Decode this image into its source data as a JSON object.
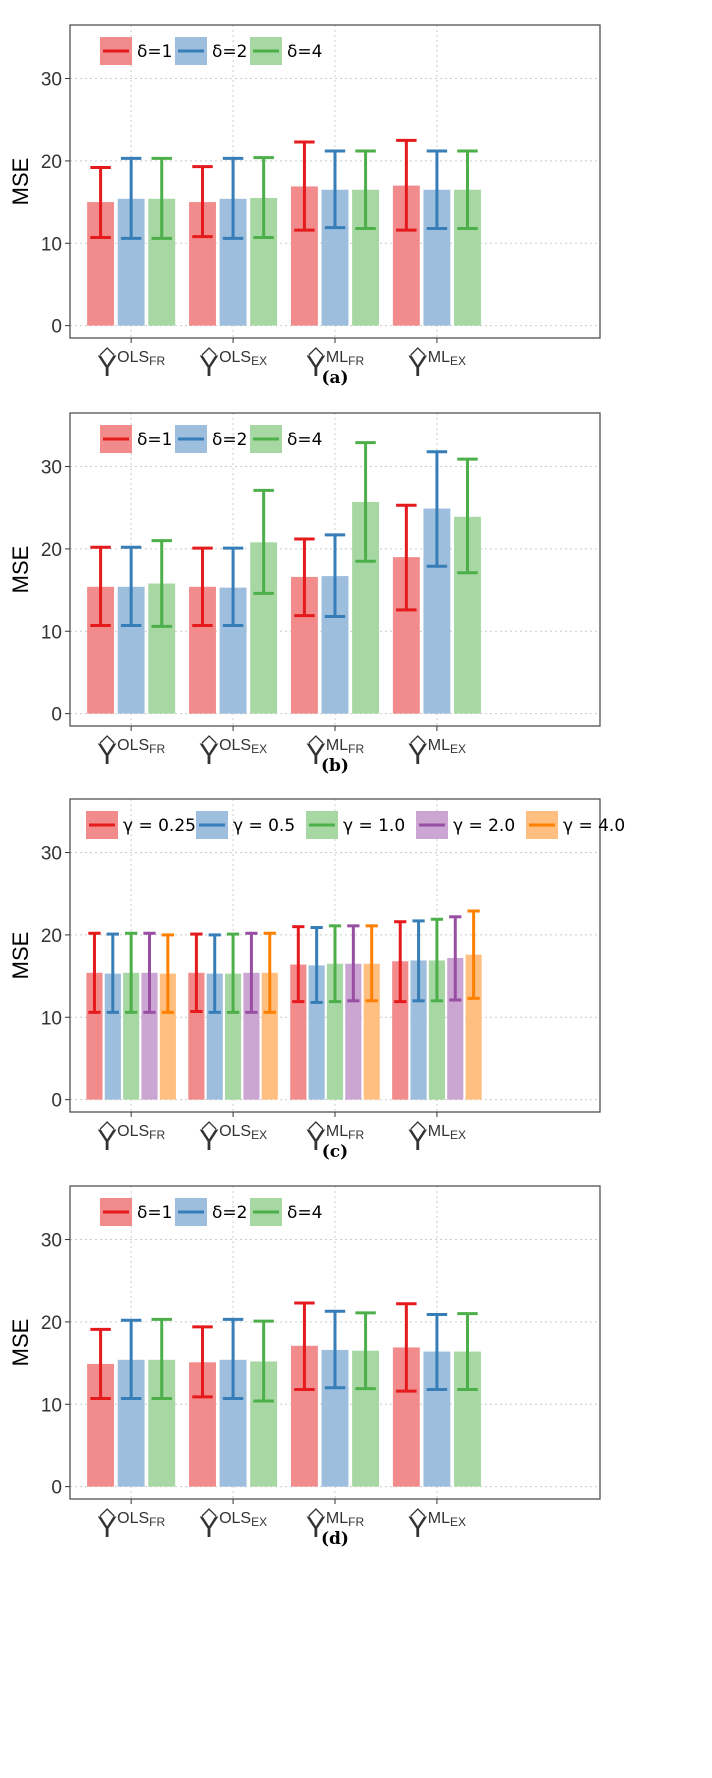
{
  "colors": {
    "line": [
      "#E41A1C",
      "#377EB8",
      "#4DAF4A",
      "#984EA3",
      "#FF7F00"
    ],
    "fill": [
      "#F28B8C",
      "#9DBEDC",
      "#A7D8A4",
      "#CBA6D3",
      "#FFBF80"
    ]
  },
  "chart_data": [
    {
      "type": "bar",
      "caption": "(a)",
      "ylabel": "MSE",
      "ylim": [
        -1.5,
        36.5
      ],
      "yticks": [
        "0",
        "10",
        "20",
        "30"
      ],
      "grid": true,
      "legend_position": "top-left",
      "categories": [
        {
          "base": "Y",
          "sup": "OLS",
          "sub": "FR"
        },
        {
          "base": "Y",
          "sup": "OLS",
          "sub": "EX"
        },
        {
          "base": "Y",
          "sup": "ML",
          "sub": "FR"
        },
        {
          "base": "Y",
          "sup": "ML",
          "sub": "EX"
        }
      ],
      "series": [
        {
          "name": "δ=1",
          "values": [
            15.0,
            15.0,
            16.9,
            17.0
          ],
          "lower": [
            10.7,
            10.8,
            11.6,
            11.6
          ],
          "upper": [
            19.2,
            19.3,
            22.3,
            22.5
          ]
        },
        {
          "name": "δ=2",
          "values": [
            15.4,
            15.4,
            16.5,
            16.5
          ],
          "lower": [
            10.6,
            10.6,
            11.9,
            11.8
          ],
          "upper": [
            20.3,
            20.3,
            21.2,
            21.2
          ]
        },
        {
          "name": "δ=4",
          "values": [
            15.4,
            15.5,
            16.5,
            16.5
          ],
          "lower": [
            10.6,
            10.7,
            11.8,
            11.8
          ],
          "upper": [
            20.3,
            20.4,
            21.2,
            21.2
          ]
        }
      ]
    },
    {
      "type": "bar",
      "caption": "(b)",
      "ylabel": "MSE",
      "ylim": [
        -1.5,
        36.5
      ],
      "yticks": [
        "0",
        "10",
        "20",
        "30"
      ],
      "grid": true,
      "legend_position": "top-left",
      "categories": [
        {
          "base": "Y",
          "sup": "OLS",
          "sub": "FR"
        },
        {
          "base": "Y",
          "sup": "OLS",
          "sub": "EX"
        },
        {
          "base": "Y",
          "sup": "ML",
          "sub": "FR"
        },
        {
          "base": "Y",
          "sup": "ML",
          "sub": "EX"
        }
      ],
      "series": [
        {
          "name": "δ=1",
          "values": [
            15.4,
            15.4,
            16.6,
            19.0
          ],
          "lower": [
            10.7,
            10.7,
            11.9,
            12.6
          ],
          "upper": [
            20.2,
            20.1,
            21.2,
            25.3
          ]
        },
        {
          "name": "δ=2",
          "values": [
            15.4,
            15.3,
            16.7,
            24.9
          ],
          "lower": [
            10.7,
            10.7,
            11.8,
            17.9
          ],
          "upper": [
            20.2,
            20.1,
            21.7,
            31.8
          ]
        },
        {
          "name": "δ=4",
          "values": [
            15.8,
            20.8,
            25.7,
            23.9
          ],
          "lower": [
            10.6,
            14.6,
            18.5,
            17.1
          ],
          "upper": [
            21.0,
            27.1,
            32.9,
            30.9
          ]
        }
      ]
    },
    {
      "type": "bar",
      "caption": "(c)",
      "ylabel": "MSE",
      "ylim": [
        -1.5,
        36.5
      ],
      "yticks": [
        "0",
        "10",
        "20",
        "30"
      ],
      "grid": true,
      "legend_position": "top",
      "categories": [
        {
          "base": "Y",
          "sup": "OLS",
          "sub": "FR"
        },
        {
          "base": "Y",
          "sup": "OLS",
          "sub": "EX"
        },
        {
          "base": "Y",
          "sup": "ML",
          "sub": "FR"
        },
        {
          "base": "Y",
          "sup": "ML",
          "sub": "EX"
        }
      ],
      "series": [
        {
          "name": "γ = 0.25",
          "values": [
            15.4,
            15.4,
            16.4,
            16.8
          ],
          "lower": [
            10.6,
            10.7,
            11.9,
            11.9
          ],
          "upper": [
            20.2,
            20.1,
            21.0,
            21.6
          ]
        },
        {
          "name": "γ = 0.5",
          "values": [
            15.3,
            15.3,
            16.3,
            16.9
          ],
          "lower": [
            10.6,
            10.6,
            11.8,
            12.0
          ],
          "upper": [
            20.1,
            20.0,
            20.9,
            21.7
          ]
        },
        {
          "name": "γ = 1.0",
          "values": [
            15.4,
            15.3,
            16.5,
            16.9
          ],
          "lower": [
            10.6,
            10.6,
            11.9,
            12.0
          ],
          "upper": [
            20.2,
            20.1,
            21.1,
            21.9
          ]
        },
        {
          "name": "γ = 2.0",
          "values": [
            15.4,
            15.4,
            16.5,
            17.2
          ],
          "lower": [
            10.6,
            10.6,
            12.0,
            12.1
          ],
          "upper": [
            20.2,
            20.2,
            21.1,
            22.2
          ]
        },
        {
          "name": "γ = 4.0",
          "values": [
            15.3,
            15.4,
            16.5,
            17.6
          ],
          "lower": [
            10.6,
            10.6,
            12.0,
            12.3
          ],
          "upper": [
            20.0,
            20.2,
            21.1,
            22.9
          ]
        }
      ]
    },
    {
      "type": "bar",
      "caption": "(d)",
      "ylabel": "MSE",
      "ylim": [
        -1.5,
        36.5
      ],
      "yticks": [
        "0",
        "10",
        "20",
        "30"
      ],
      "grid": true,
      "legend_position": "top-left",
      "categories": [
        {
          "base": "Y",
          "sup": "OLS",
          "sub": "FR"
        },
        {
          "base": "Y",
          "sup": "OLS",
          "sub": "EX"
        },
        {
          "base": "Y",
          "sup": "ML",
          "sub": "FR"
        },
        {
          "base": "Y",
          "sup": "ML",
          "sub": "EX"
        }
      ],
      "series": [
        {
          "name": "δ=1",
          "values": [
            14.9,
            15.1,
            17.1,
            16.9
          ],
          "lower": [
            10.7,
            10.9,
            11.8,
            11.6
          ],
          "upper": [
            19.1,
            19.4,
            22.3,
            22.2
          ]
        },
        {
          "name": "δ=2",
          "values": [
            15.4,
            15.4,
            16.6,
            16.4
          ],
          "lower": [
            10.7,
            10.7,
            12.0,
            11.8
          ],
          "upper": [
            20.2,
            20.3,
            21.3,
            20.9
          ]
        },
        {
          "name": "δ=4",
          "values": [
            15.4,
            15.2,
            16.5,
            16.4
          ],
          "lower": [
            10.7,
            10.4,
            11.9,
            11.8
          ],
          "upper": [
            20.3,
            20.1,
            21.1,
            21.0
          ]
        }
      ]
    }
  ]
}
